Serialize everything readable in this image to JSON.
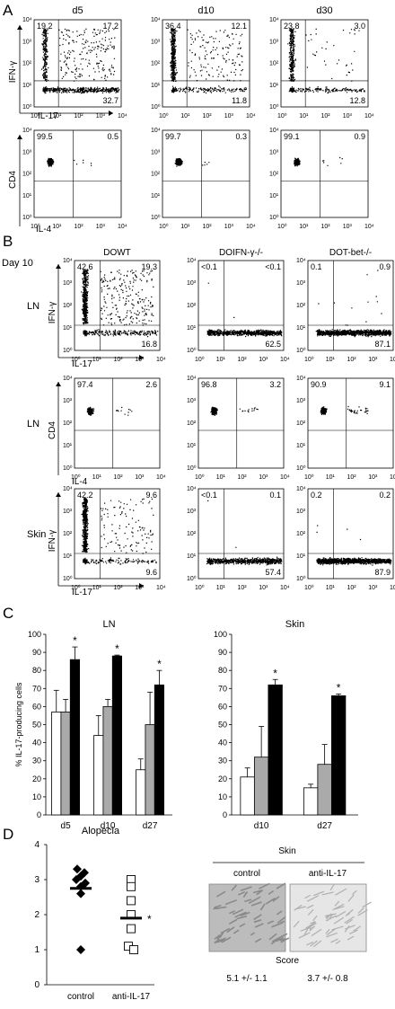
{
  "panel_letters": [
    "A",
    "B",
    "C",
    "D"
  ],
  "panel_a": {
    "column_labels": [
      "d5",
      "d10",
      "d30"
    ],
    "row1": {
      "ylabel": "IFN-γ",
      "xlabel": "IL-17",
      "quadrants": [
        [
          "19.2",
          "17.2",
          "32.7"
        ],
        [
          "36.4",
          "12.1",
          "11.8"
        ],
        [
          "23.8",
          "3.0",
          "12.8"
        ]
      ]
    },
    "row2": {
      "ylabel": "CD4",
      "xlabel": "IL-4",
      "quadrants": [
        [
          "99.5",
          "0.5"
        ],
        [
          "99.7",
          "0.3"
        ],
        [
          "99.1",
          "0.9"
        ]
      ]
    },
    "ticks": [
      "10⁰",
      "10¹",
      "10²",
      "10³",
      "10⁴"
    ]
  },
  "panel_b": {
    "day_label": "Day 10",
    "column_labels": [
      "DOWT",
      "DOIFN-γ-/-",
      "DOT-bet-/-"
    ],
    "rows": [
      {
        "tissue": "LN",
        "ylabel": "IFN-γ",
        "xlabel": "IL-17",
        "quadrants": [
          [
            "42.6",
            "19.3",
            "16.8"
          ],
          [
            "<0.1",
            "<0.1",
            "62.5"
          ],
          [
            "0.1",
            "0.9",
            "87.1"
          ]
        ]
      },
      {
        "tissue": "LN",
        "ylabel": "CD4",
        "xlabel": "IL-4",
        "quadrants": [
          [
            "97.4",
            "2.6"
          ],
          [
            "96.8",
            "3.2"
          ],
          [
            "90.9",
            "9.1"
          ]
        ]
      },
      {
        "tissue": "Skin",
        "ylabel": "IFN-γ",
        "xlabel": "IL-17",
        "quadrants": [
          [
            "42.2",
            "9.6",
            "9.6"
          ],
          [
            "<0.1",
            "0.1",
            "57.4"
          ],
          [
            "0.2",
            "0.2",
            "87.9"
          ]
        ]
      }
    ]
  },
  "chart_data": [
    {
      "type": "bar",
      "title": "LN",
      "ylabel": "% IL-17-producing cells",
      "ylim": [
        0,
        100
      ],
      "yticks": [
        0,
        10,
        20,
        30,
        40,
        50,
        60,
        70,
        80,
        90,
        100
      ],
      "categories": [
        "d5",
        "d10",
        "d27"
      ],
      "series": [
        {
          "color": "#ffffff",
          "values": [
            57,
            44,
            25
          ],
          "errors": [
            12,
            11,
            6
          ]
        },
        {
          "color": "#aaaaaa",
          "values": [
            57,
            60,
            50
          ],
          "errors": [
            7,
            4,
            18
          ]
        },
        {
          "color": "#000000",
          "values": [
            86,
            88,
            72
          ],
          "errors": [
            7,
            0.5,
            8
          ]
        }
      ],
      "annotations": [
        "*",
        "*",
        "*"
      ]
    },
    {
      "type": "bar",
      "title": "Skin",
      "ylim": [
        0,
        100
      ],
      "yticks": [
        0,
        10,
        20,
        30,
        40,
        50,
        60,
        70,
        80,
        90,
        100
      ],
      "categories": [
        "d10",
        "d27"
      ],
      "series": [
        {
          "color": "#ffffff",
          "values": [
            21,
            15
          ],
          "errors": [
            5,
            2
          ]
        },
        {
          "color": "#aaaaaa",
          "values": [
            32,
            28
          ],
          "errors": [
            17,
            11
          ]
        },
        {
          "color": "#000000",
          "values": [
            72,
            66
          ],
          "errors": [
            3,
            1
          ]
        }
      ],
      "annotations": [
        "*",
        "*"
      ]
    },
    {
      "type": "scatter",
      "title": "Alopecia",
      "ylim": [
        0,
        4
      ],
      "yticks": [
        0,
        1,
        2,
        3,
        4
      ],
      "categories": [
        "control",
        "anti-IL-17"
      ],
      "series": [
        {
          "marker": "filled-diamond",
          "values": [
            3.3,
            3.2,
            3.1,
            3.0,
            2.9,
            2.8,
            2.6,
            1.0
          ],
          "mean": 2.75
        },
        {
          "marker": "open-square",
          "values": [
            3.0,
            2.8,
            2.4,
            2.0,
            1.6,
            1.1,
            1.0
          ],
          "mean": 1.9
        }
      ],
      "annotations": [
        "*"
      ]
    }
  ],
  "panel_d_images": {
    "title": "Skin",
    "labels": [
      "control",
      "anti-IL-17"
    ],
    "score_label": "Score",
    "scores": [
      "5.1 +/- 1.1",
      "3.7 +/- 0.8"
    ]
  }
}
